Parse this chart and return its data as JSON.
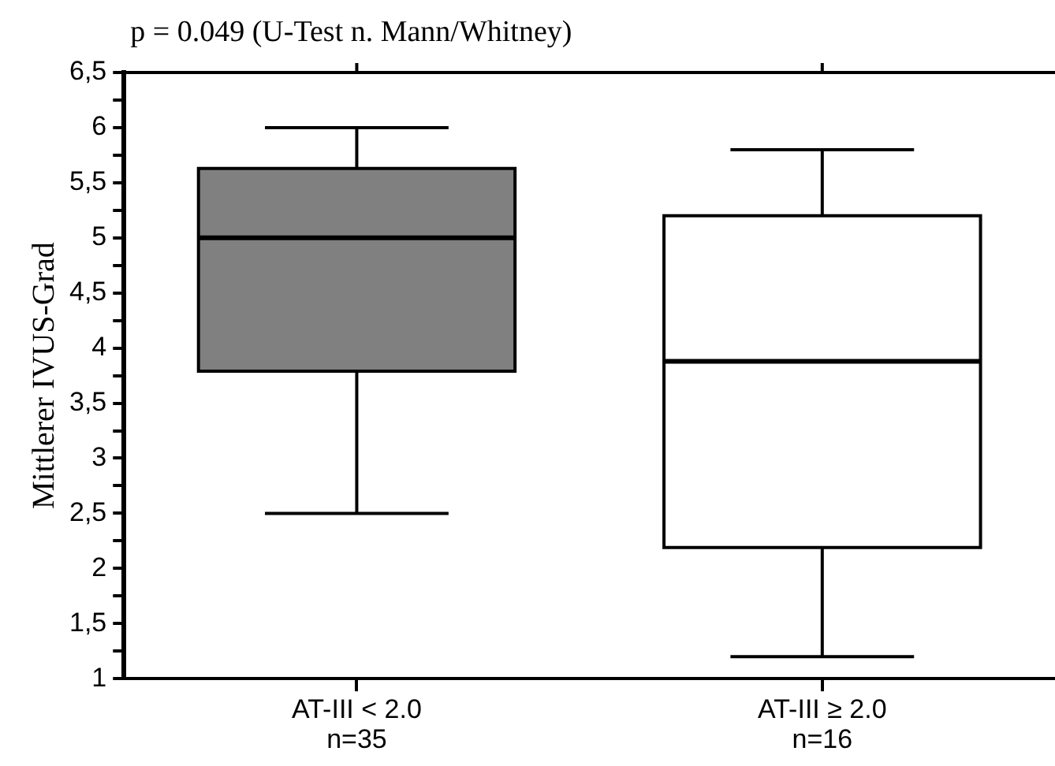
{
  "chart_data": {
    "type": "box",
    "title": "p = 0.049 (U-Test n. Mann/Whitney)",
    "ylabel": "Mittlerer IVUS-Grad",
    "categories": [
      "AT-III < 2.0\nn=35",
      "AT-III ≥ 2.0\nn=16"
    ],
    "colors": [
      "#808080",
      "#ffffff"
    ],
    "boxes": [
      {
        "low": 2.5,
        "q1": 3.79,
        "median": 5.0,
        "q3": 5.63,
        "high": 6.0
      },
      {
        "low": 1.2,
        "q1": 2.19,
        "median": 3.88,
        "q3": 5.2,
        "high": 5.8
      }
    ],
    "ylim": [
      1,
      6.5
    ],
    "yticks": [
      {
        "value": 1,
        "label": "1"
      },
      {
        "value": 1.25,
        "label": null
      },
      {
        "value": 1.5,
        "label": "1,5"
      },
      {
        "value": 1.75,
        "label": null
      },
      {
        "value": 2,
        "label": "2"
      },
      {
        "value": 2.25,
        "label": null
      },
      {
        "value": 2.5,
        "label": "2,5"
      },
      {
        "value": 2.75,
        "label": null
      },
      {
        "value": 3,
        "label": "3"
      },
      {
        "value": 3.25,
        "label": null
      },
      {
        "value": 3.5,
        "label": "3,5"
      },
      {
        "value": 3.75,
        "label": null
      },
      {
        "value": 4,
        "label": "4"
      },
      {
        "value": 4.25,
        "label": null
      },
      {
        "value": 4.5,
        "label": "4,5"
      },
      {
        "value": 4.75,
        "label": null
      },
      {
        "value": 5,
        "label": "5"
      },
      {
        "value": 5.25,
        "label": null
      },
      {
        "value": 5.5,
        "label": "5,5"
      },
      {
        "value": 5.75,
        "label": null
      },
      {
        "value": 6,
        "label": "6"
      },
      {
        "value": 6.25,
        "label": null
      },
      {
        "value": 6.5,
        "label": "6,5"
      }
    ],
    "grid": false,
    "legend": false
  }
}
